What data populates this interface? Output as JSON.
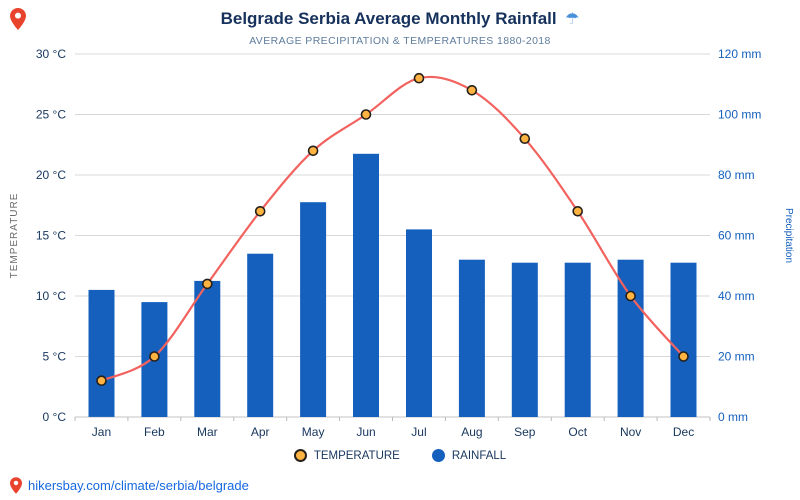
{
  "header": {
    "title": "Belgrade Serbia Average Monthly Rainfall",
    "title_icon": "☂",
    "subtitle": "AVERAGE PRECIPITATION & TEMPERATURES 1880-2018"
  },
  "chart_data": {
    "type": "bar+line",
    "title": "Belgrade Serbia Average Monthly Rainfall",
    "subtitle": "AVERAGE PRECIPITATION & TEMPERATURES 1880-2018",
    "categories": [
      "Jan",
      "Feb",
      "Mar",
      "Apr",
      "May",
      "Jun",
      "Jul",
      "Aug",
      "Sep",
      "Oct",
      "Nov",
      "Dec"
    ],
    "series": [
      {
        "name": "TEMPERATURE",
        "type": "line",
        "axis": "left",
        "unit": "°C",
        "values": [
          3,
          5,
          11,
          17,
          22,
          25,
          28,
          27,
          23,
          17,
          10,
          5
        ],
        "line_color": "#f2625e",
        "marker_fill": "#ffb341",
        "marker_stroke": "#26201a"
      },
      {
        "name": "RAINFALL",
        "type": "bar",
        "axis": "right",
        "unit": "mm",
        "values": [
          42,
          38,
          45,
          54,
          71,
          87,
          62,
          52,
          51,
          51,
          52,
          51
        ],
        "color": "#1560bd"
      }
    ],
    "left_axis": {
      "label": "TEMPERATURE",
      "min": 0,
      "max": 30,
      "tick_labels": [
        "0 °C",
        "5 °C",
        "10 °C",
        "15 °C",
        "20 °C",
        "25 °C",
        "30 °C"
      ],
      "color": "#17365d"
    },
    "right_axis": {
      "label": "Precipitation",
      "min": 0,
      "max": 120,
      "tick_labels": [
        "0 mm",
        "20 mm",
        "40 mm",
        "60 mm",
        "80 mm",
        "100 mm",
        "120 mm"
      ],
      "color": "#1560bd"
    },
    "grid": true,
    "grid_color": "#d8d8d8",
    "legend_position": "bottom"
  },
  "footer": {
    "link": "hikersbay.com/climate/serbia/belgrade"
  }
}
